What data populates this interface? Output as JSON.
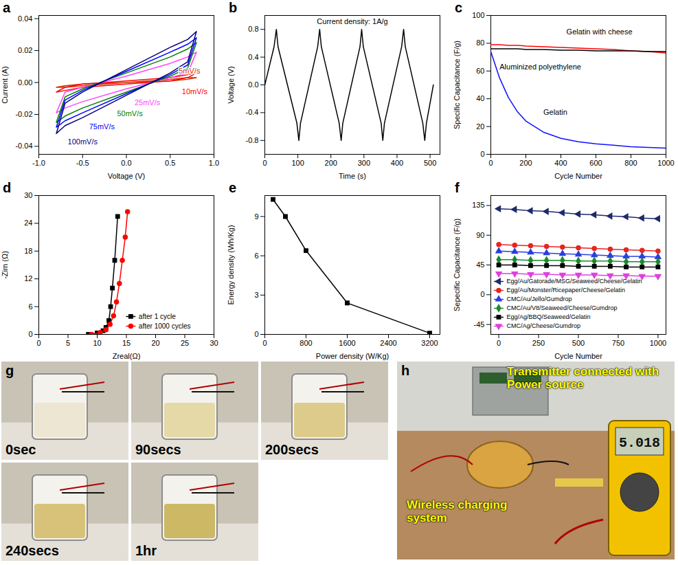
{
  "chart_data": [
    {
      "panel": "a",
      "type": "line",
      "x_label": "Voltage (V)",
      "y_label": "Current (A)",
      "xlim": [
        -1,
        1
      ],
      "xticks": [
        {
          "value": -1,
          "label": "-1.0"
        },
        -0.5,
        {
          "value": 0,
          "label": "0.0"
        },
        0.5,
        {
          "value": 1,
          "label": "1.0"
        }
      ],
      "ylim": [
        -0.045,
        0.042
      ],
      "yticks": [
        -0.04,
        -0.02,
        {
          "value": 0,
          "label": "0.00"
        },
        0.02,
        0.04
      ],
      "x": [
        -0.8,
        -0.7,
        -0.5,
        0,
        0.5,
        0.7,
        0.8,
        0.7,
        0.5,
        0,
        -0.5,
        -0.7,
        -0.8
      ],
      "series": [
        {
          "name": "5mV/s",
          "color": "#cc3300",
          "line_style": "solid",
          "values": [
            -0.003,
            -0.002,
            -0.001,
            0,
            0.002,
            0.003,
            0.003,
            0.002,
            0.001,
            0,
            -0.002,
            -0.003,
            -0.003
          ]
        },
        {
          "name": "10mV/s",
          "color": "#ff0000",
          "line_style": "solid",
          "values": [
            -0.006,
            -0.003,
            -0.001,
            0.001,
            0.003,
            0.005,
            0.006,
            0.003,
            0.001,
            -0.001,
            -0.003,
            -0.005,
            -0.006
          ]
        },
        {
          "name": "25mV/s",
          "color": "#ff44ff",
          "line_style": "solid",
          "values": [
            -0.019,
            -0.006,
            -0.003,
            0.004,
            0.012,
            0.016,
            0.019,
            0.006,
            0.003,
            -0.004,
            -0.012,
            -0.016,
            -0.019
          ]
        },
        {
          "name": "50mV/s",
          "color": "#008000",
          "line_style": "solid",
          "values": [
            -0.025,
            -0.009,
            -0.004,
            0.006,
            0.016,
            0.021,
            0.025,
            0.009,
            0.004,
            -0.006,
            -0.016,
            -0.021,
            -0.025
          ]
        },
        {
          "name": "75mV/s",
          "color": "#0000ff",
          "line_style": "solid",
          "values": [
            -0.028,
            -0.011,
            -0.005,
            0.007,
            0.019,
            0.024,
            0.028,
            0.011,
            0.005,
            -0.007,
            -0.019,
            -0.024,
            -0.028
          ]
        },
        {
          "name": "100mV/s",
          "color": "#000080",
          "line_style": "solid",
          "values": [
            -0.032,
            -0.013,
            -0.006,
            0.008,
            0.022,
            0.027,
            0.032,
            0.013,
            0.006,
            -0.008,
            -0.022,
            -0.027,
            -0.032
          ]
        }
      ]
    },
    {
      "panel": "b",
      "type": "line",
      "x_label": "Time (s)",
      "y_label": "Voltage (V)",
      "annotations": [
        "Current density: 1A/g"
      ],
      "xlim": [
        0,
        530
      ],
      "xticks": [
        0,
        100,
        200,
        300,
        400,
        500
      ],
      "ylim": [
        -1,
        1
      ],
      "yticks": [
        -0.8,
        -0.4,
        {
          "value": 0,
          "label": "0.0"
        },
        0.4,
        0.8
      ],
      "series": [
        {
          "color": "#000000",
          "line_style": "solid",
          "x": [
            0,
            28,
            35,
            40,
            97,
            103,
            108,
            160,
            166,
            171,
            225,
            231,
            236,
            288,
            293,
            298,
            352,
            357,
            362,
            414,
            420,
            425,
            478,
            484,
            489,
            510
          ],
          "values": [
            0,
            0.55,
            0.8,
            0.55,
            -0.55,
            -0.8,
            -0.55,
            0.55,
            0.8,
            0.55,
            -0.55,
            -0.8,
            -0.55,
            0.55,
            0.8,
            0.55,
            -0.55,
            -0.8,
            -0.55,
            0.55,
            0.8,
            0.55,
            -0.55,
            -0.8,
            -0.55,
            0
          ]
        }
      ]
    },
    {
      "panel": "c",
      "type": "line",
      "x_label": "Cycle Number",
      "y_label": "Specific Capacitance (F/g)",
      "xlim": [
        0,
        1000
      ],
      "xticks": [
        0,
        200,
        400,
        600,
        800,
        1000
      ],
      "ylim": [
        0,
        100
      ],
      "yticks": [
        0,
        20,
        40,
        60,
        80,
        100
      ],
      "x": [
        0,
        50,
        100,
        150,
        200,
        300,
        400,
        500,
        600,
        700,
        800,
        900,
        1000
      ],
      "series": [
        {
          "name": "Gelatin with cheese",
          "color": "#ff0000",
          "line_style": "solid",
          "values": [
            79,
            79,
            78.5,
            78.5,
            78,
            77.5,
            77,
            76.5,
            76,
            75.5,
            74.5,
            74,
            73
          ]
        },
        {
          "name": "Aluminized polyethylene",
          "color": "#000000",
          "line_style": "solid",
          "values": [
            76,
            76,
            76,
            76,
            75.5,
            75.5,
            75,
            75,
            74.5,
            74.5,
            74.5,
            74,
            74
          ]
        },
        {
          "name": "Gelatin",
          "color": "#1010ff",
          "line_style": "solid",
          "values": [
            74,
            55,
            41,
            31,
            24,
            16,
            11.5,
            9,
            7.5,
            6.5,
            5.5,
            5,
            4.5
          ]
        }
      ]
    },
    {
      "panel": "d",
      "type": "line",
      "x_label": "Zreal(Ω)",
      "y_label": "-Zim (Ω)",
      "legend": "lower right",
      "xlim": [
        0,
        30
      ],
      "xticks": [
        0,
        5,
        10,
        15,
        20,
        25,
        30
      ],
      "ylim": [
        0,
        30
      ],
      "yticks": [
        0,
        6,
        12,
        18,
        24,
        30
      ],
      "series": [
        {
          "name": "after 1 cycle",
          "color": "#000000",
          "marker": "square",
          "line_style": "solid",
          "x": [
            8.5,
            10,
            11,
            11.5,
            12,
            12.3,
            12.6,
            13,
            13.5
          ],
          "values": [
            0,
            0.3,
            0.8,
            1.5,
            3,
            6,
            10,
            16,
            25.5
          ]
        },
        {
          "name": "after 1000 cycles",
          "color": "#ff0000",
          "marker": "circle",
          "line_style": "solid",
          "x": [
            9,
            10.5,
            11.5,
            12.2,
            12.8,
            13.3,
            13.8,
            14.3,
            14.8,
            15.2
          ],
          "values": [
            0,
            0.4,
            1,
            2.2,
            4,
            7,
            11,
            16,
            21,
            26.5
          ]
        }
      ]
    },
    {
      "panel": "e",
      "type": "line",
      "x_label": "Power density (W/Kg)",
      "y_label": "Energy density (Wh/Kg)",
      "xlim": [
        0,
        3400
      ],
      "xticks": [
        0,
        800,
        1600,
        2400,
        3200
      ],
      "ylim": [
        0,
        10.6
      ],
      "yticks": [
        0,
        3,
        6,
        9
      ],
      "series": [
        {
          "color": "#000000",
          "marker": "square",
          "line_style": "solid",
          "x": [
            160,
            400,
            800,
            1600,
            3200
          ],
          "values": [
            10.3,
            9,
            6.4,
            2.4,
            0.1
          ]
        }
      ]
    },
    {
      "panel": "f",
      "type": "line",
      "x_label": "Cycle Number",
      "y_label": "Sepecific Capacitance (F/g)",
      "legend": "lower left",
      "xlim": [
        -50,
        1050
      ],
      "xticks": [
        0,
        250,
        500,
        750,
        1000
      ],
      "ylim": [
        -60,
        150
      ],
      "yticks": [
        -45,
        0,
        45,
        90,
        135
      ],
      "x": [
        0,
        100,
        200,
        300,
        400,
        500,
        600,
        700,
        800,
        900,
        1000
      ],
      "series": [
        {
          "name": "Egg/Au/Gatorade/MSG/Seaweed/Cheese/Gelatin",
          "color": "#1f2a6b",
          "marker": "triangle-left",
          "line_style": "solid",
          "values": [
            130,
            129,
            127,
            126,
            124,
            122,
            121,
            119,
            118,
            116,
            115
          ]
        },
        {
          "name": "Egg/Au/Monster/Ricepaper/Cheese/Gelatin",
          "color": "#e8251f",
          "marker": "circle",
          "line_style": "solid",
          "values": [
            76,
            75,
            74,
            73,
            72,
            71,
            70,
            69,
            68,
            67,
            66
          ]
        },
        {
          "name": "CMC/Au/Jello/Gumdrop",
          "color": "#2a3fe0",
          "marker": "triangle-up",
          "line_style": "solid",
          "values": [
            66,
            65,
            64,
            63,
            62,
            61,
            60,
            59,
            58,
            58,
            57
          ]
        },
        {
          "name": "CMC/Au/V8/Seaweed/Cheese/Gumdrop",
          "color": "#1a8a2a",
          "marker": "diamond",
          "line_style": "solid",
          "values": [
            53,
            53,
            52,
            52,
            52,
            51,
            51,
            51,
            50,
            50,
            50
          ]
        },
        {
          "name": "Egg/Ag/BBQ/Seaweed/Gelatin",
          "color": "#000000",
          "marker": "square",
          "line_style": "solid",
          "values": [
            45,
            45,
            44,
            44,
            44,
            43,
            43,
            43,
            42,
            42,
            42
          ]
        },
        {
          "name": "CMC/Ag/Cheese/Gumdrop",
          "color": "#e040e0",
          "marker": "triangle-down",
          "line_style": "solid",
          "values": [
            32,
            32,
            31,
            31,
            30,
            30,
            30,
            29,
            29,
            28,
            28
          ]
        }
      ]
    }
  ],
  "photos": [
    {
      "panel": "g",
      "frames": [
        "0sec",
        "90secs",
        "200secs",
        "240secs",
        "1hr"
      ]
    },
    {
      "panel": "h",
      "labels": [
        "Transmitter connected with Power source",
        "Wireless charging system"
      ],
      "meter_reading": "5.018"
    }
  ]
}
